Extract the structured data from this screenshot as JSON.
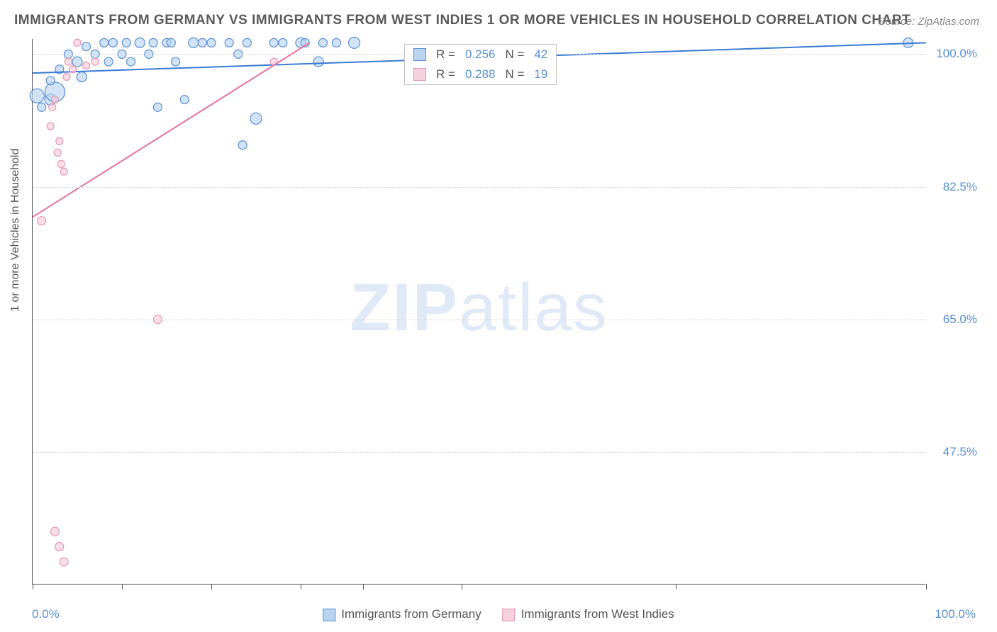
{
  "title": "IMMIGRANTS FROM GERMANY VS IMMIGRANTS FROM WEST INDIES 1 OR MORE VEHICLES IN HOUSEHOLD CORRELATION CHART",
  "source": "Source: ZipAtlas.com",
  "watermark_a": "ZIP",
  "watermark_b": "atlas",
  "chart": {
    "type": "scatter",
    "xlim": [
      0,
      100
    ],
    "ylim": [
      30,
      102
    ],
    "x_axis_min_label": "0.0%",
    "x_axis_max_label": "100.0%",
    "y_label": "1 or more Vehicles in Household",
    "ytick_labels": [
      "47.5%",
      "65.0%",
      "82.5%",
      "100.0%"
    ],
    "ytick_values": [
      47.5,
      65.0,
      82.5,
      100.0
    ],
    "xtick_positions": [
      0,
      10,
      20,
      30,
      37,
      48,
      72,
      100
    ],
    "grid_color": "#d8d8d8",
    "background_color": "#ffffff",
    "axis_color": "#555555",
    "label_color": "#5a8fd6",
    "text_color": "#555555"
  },
  "series": [
    {
      "id": "germany",
      "label": "Immigrants from Germany",
      "color_fill": "#b8d4f0",
      "color_stroke": "#5a8fd6",
      "r_value": "0.256",
      "n_value": "42",
      "trend": {
        "x1": 0,
        "y1": 97.5,
        "x2": 100,
        "y2": 101.5,
        "color": "#3a7bd5",
        "width": 2
      },
      "points": [
        {
          "x": 2,
          "y": 94,
          "r": 8
        },
        {
          "x": 2.5,
          "y": 95,
          "r": 14
        },
        {
          "x": 3,
          "y": 98,
          "r": 6
        },
        {
          "x": 4,
          "y": 100,
          "r": 6
        },
        {
          "x": 5,
          "y": 99,
          "r": 7
        },
        {
          "x": 5.5,
          "y": 97,
          "r": 7
        },
        {
          "x": 6,
          "y": 101,
          "r": 6
        },
        {
          "x": 7,
          "y": 100,
          "r": 6
        },
        {
          "x": 8,
          "y": 101.5,
          "r": 6
        },
        {
          "x": 8.5,
          "y": 99,
          "r": 6
        },
        {
          "x": 9,
          "y": 101.5,
          "r": 6
        },
        {
          "x": 10,
          "y": 100,
          "r": 6
        },
        {
          "x": 10.5,
          "y": 101.5,
          "r": 6
        },
        {
          "x": 11,
          "y": 99,
          "r": 6
        },
        {
          "x": 12,
          "y": 101.5,
          "r": 7
        },
        {
          "x": 13,
          "y": 100,
          "r": 6
        },
        {
          "x": 13.5,
          "y": 101.5,
          "r": 6
        },
        {
          "x": 14,
          "y": 93,
          "r": 6
        },
        {
          "x": 15,
          "y": 101.5,
          "r": 6
        },
        {
          "x": 15.5,
          "y": 101.5,
          "r": 6
        },
        {
          "x": 16,
          "y": 99,
          "r": 6
        },
        {
          "x": 17,
          "y": 94,
          "r": 6
        },
        {
          "x": 18,
          "y": 101.5,
          "r": 7
        },
        {
          "x": 19,
          "y": 101.5,
          "r": 6
        },
        {
          "x": 20,
          "y": 101.5,
          "r": 6
        },
        {
          "x": 22,
          "y": 101.5,
          "r": 6
        },
        {
          "x": 23,
          "y": 100,
          "r": 6
        },
        {
          "x": 23.5,
          "y": 88,
          "r": 6
        },
        {
          "x": 24,
          "y": 101.5,
          "r": 6
        },
        {
          "x": 25,
          "y": 91.5,
          "r": 8
        },
        {
          "x": 27,
          "y": 101.5,
          "r": 6
        },
        {
          "x": 28,
          "y": 101.5,
          "r": 6
        },
        {
          "x": 30,
          "y": 101.5,
          "r": 7
        },
        {
          "x": 30.5,
          "y": 101.5,
          "r": 6
        },
        {
          "x": 32,
          "y": 99,
          "r": 7
        },
        {
          "x": 32.5,
          "y": 101.5,
          "r": 6
        },
        {
          "x": 34,
          "y": 101.5,
          "r": 6
        },
        {
          "x": 36,
          "y": 101.5,
          "r": 8
        },
        {
          "x": 1,
          "y": 93,
          "r": 6
        },
        {
          "x": 2,
          "y": 96.5,
          "r": 6
        },
        {
          "x": 98,
          "y": 101.5,
          "r": 7
        },
        {
          "x": 0.5,
          "y": 94.5,
          "r": 10
        }
      ]
    },
    {
      "id": "west-indies",
      "label": "Immigrants from West Indies",
      "color_fill": "#f6d0dc",
      "color_stroke": "#e695b0",
      "r_value": "0.288",
      "n_value": "19",
      "trend": {
        "x1": 0,
        "y1": 78.5,
        "x2": 31,
        "y2": 101.5,
        "color": "#e6739f",
        "width": 2
      },
      "points": [
        {
          "x": 1,
          "y": 78,
          "r": 6
        },
        {
          "x": 2,
          "y": 90.5,
          "r": 5
        },
        {
          "x": 2.2,
          "y": 93,
          "r": 5
        },
        {
          "x": 2.5,
          "y": 94,
          "r": 5
        },
        {
          "x": 2.8,
          "y": 87,
          "r": 5
        },
        {
          "x": 3,
          "y": 88.5,
          "r": 5
        },
        {
          "x": 3.2,
          "y": 85.5,
          "r": 5
        },
        {
          "x": 3.5,
          "y": 84.5,
          "r": 5
        },
        {
          "x": 3.8,
          "y": 97,
          "r": 5
        },
        {
          "x": 4,
          "y": 99,
          "r": 5
        },
        {
          "x": 4.5,
          "y": 98,
          "r": 5
        },
        {
          "x": 5,
          "y": 101.5,
          "r": 5
        },
        {
          "x": 6,
          "y": 98.5,
          "r": 5
        },
        {
          "x": 7,
          "y": 99,
          "r": 5
        },
        {
          "x": 14,
          "y": 65,
          "r": 6
        },
        {
          "x": 2.5,
          "y": 37,
          "r": 6
        },
        {
          "x": 3,
          "y": 35,
          "r": 6
        },
        {
          "x": 3.5,
          "y": 33,
          "r": 6
        },
        {
          "x": 27,
          "y": 99,
          "r": 5
        }
      ]
    }
  ],
  "legend": {
    "r_label": "R =",
    "n_label": "N ="
  }
}
